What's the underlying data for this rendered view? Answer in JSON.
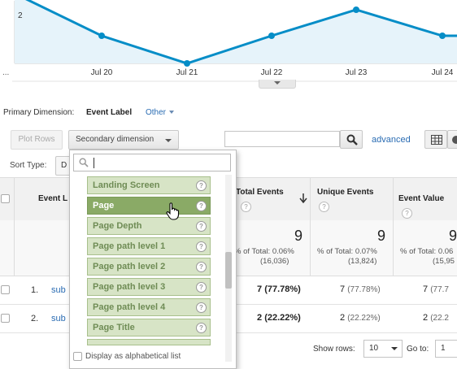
{
  "chart": {
    "y_tick": "2",
    "ellipsis": "...",
    "x_labels": [
      "Jul 20",
      "Jul 21",
      "Jul 22",
      "Jul 23",
      "Jul 24"
    ],
    "color": "#058dc7",
    "fill": "#e6f3fa"
  },
  "primary_dimension": {
    "label": "Primary Dimension:",
    "value": "Event Label",
    "other": "Other"
  },
  "toolbar": {
    "plot_rows": "Plot Rows",
    "secondary_dimension": "Secondary dimension",
    "search_placeholder": "",
    "advanced": "advanced"
  },
  "sort": {
    "label": "Sort Type:",
    "value": "D"
  },
  "table": {
    "columns": {
      "event_label": "Event L",
      "total_events": "Total Events",
      "unique_events": "Unique Events",
      "event_value": "Event Value"
    },
    "totals": {
      "total_events": {
        "value": "9",
        "pct": "% of Total: 0.06%",
        "of": "(16,036)"
      },
      "unique_events": {
        "value": "9",
        "pct": "% of Total: 0.07%",
        "of": "(13,824)"
      },
      "event_value": {
        "value": "9",
        "pct": "% of Total: 0.06",
        "of": "(15,95"
      }
    },
    "rows": [
      {
        "num": "1.",
        "label": "sub",
        "total": "7",
        "total_pct": "(77.78%)",
        "unique": "7",
        "unique_pct": "(77.78%)",
        "value": "7",
        "value_pct": "(77.7"
      },
      {
        "num": "2.",
        "label": "sub",
        "total": "2",
        "total_pct": "(22.22%)",
        "unique": "2",
        "unique_pct": "(22.22%)",
        "value": "2",
        "value_pct": "(22.2"
      }
    ]
  },
  "footer": {
    "show_rows_label": "Show rows:",
    "show_rows_value": "10",
    "goto_label": "Go to:",
    "goto_value": "1"
  },
  "dropdown": {
    "search_value": "",
    "items": [
      "Landing Screen",
      "Page",
      "Page Depth",
      "Page path level 1",
      "Page path level 2",
      "Page path level 3",
      "Page path level 4",
      "Page Title"
    ],
    "highlighted": "Page",
    "alpha_label": "Display as alphabetical list"
  }
}
